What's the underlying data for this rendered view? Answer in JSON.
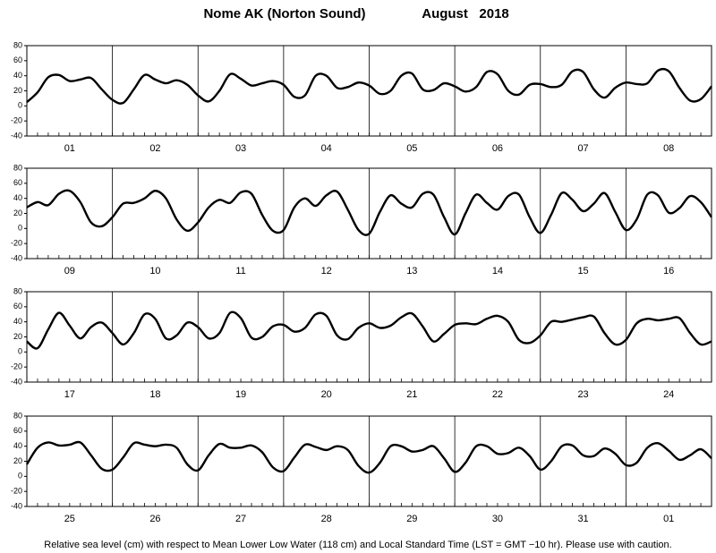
{
  "title": "Nome AK (Norton Sound)",
  "period": "August   2018",
  "note": "Relative sea level (cm) with respect to Mean Lower Low Water (118 cm) and Local Standard Time (LST = GMT −10 hr). Please use with caution.",
  "chart_data": [
    {
      "type": "line",
      "color": "#000000",
      "categories": [
        "01",
        "02",
        "03",
        "04",
        "05",
        "06",
        "07",
        "08"
      ],
      "x": [
        0,
        3,
        6,
        9,
        12,
        15,
        18,
        21,
        24,
        27,
        30,
        33,
        36,
        39,
        42,
        45,
        48,
        51,
        54,
        57,
        60,
        63,
        66,
        69,
        72,
        75,
        78,
        81,
        84,
        87,
        90,
        93,
        96,
        99,
        102,
        105,
        108,
        111,
        114,
        117,
        120,
        123,
        126,
        129,
        132,
        135,
        138,
        141,
        144,
        147,
        150,
        153,
        156,
        159,
        162,
        165,
        168,
        171,
        174,
        177,
        180,
        183,
        186,
        189,
        192
      ],
      "values": [
        5,
        18,
        38,
        41,
        33,
        35,
        37,
        22,
        8,
        4,
        22,
        41,
        35,
        30,
        34,
        28,
        14,
        6,
        20,
        42,
        36,
        27,
        30,
        33,
        28,
        12,
        14,
        40,
        40,
        24,
        25,
        31,
        27,
        16,
        20,
        40,
        43,
        22,
        21,
        30,
        26,
        19,
        25,
        45,
        42,
        20,
        15,
        28,
        29,
        25,
        28,
        46,
        45,
        22,
        11,
        24,
        31,
        29,
        30,
        47,
        46,
        24,
        7,
        9,
        26
      ],
      "xlim": [
        0,
        192
      ],
      "xticks": [
        0,
        24,
        48,
        72,
        96,
        120,
        144,
        168,
        192
      ],
      "ylim": [
        -40,
        80
      ],
      "yticks": [
        -40,
        -20,
        0,
        20,
        40,
        60,
        80
      ]
    },
    {
      "type": "line",
      "color": "#000000",
      "categories": [
        "09",
        "10",
        "11",
        "12",
        "13",
        "14",
        "15",
        "16"
      ],
      "x": [
        0,
        3,
        6,
        9,
        12,
        15,
        18,
        21,
        24,
        27,
        30,
        33,
        36,
        39,
        42,
        45,
        48,
        51,
        54,
        57,
        60,
        63,
        66,
        69,
        72,
        75,
        78,
        81,
        84,
        87,
        90,
        93,
        96,
        99,
        102,
        105,
        108,
        111,
        114,
        117,
        120,
        123,
        126,
        129,
        132,
        135,
        138,
        141,
        144,
        147,
        150,
        153,
        156,
        159,
        162,
        165,
        168,
        171,
        174,
        177,
        180,
        183,
        186,
        189,
        192
      ],
      "values": [
        28,
        35,
        31,
        46,
        50,
        35,
        8,
        3,
        15,
        33,
        34,
        40,
        50,
        40,
        12,
        -3,
        8,
        28,
        38,
        34,
        48,
        46,
        18,
        -3,
        -2,
        28,
        40,
        30,
        44,
        49,
        25,
        -2,
        -7,
        22,
        44,
        33,
        28,
        46,
        45,
        15,
        -8,
        20,
        45,
        34,
        25,
        43,
        45,
        15,
        -6,
        18,
        47,
        38,
        23,
        33,
        47,
        22,
        -2,
        12,
        45,
        44,
        21,
        27,
        43,
        35,
        15
      ],
      "xlim": [
        0,
        192
      ],
      "xticks": [
        0,
        24,
        48,
        72,
        96,
        120,
        144,
        168,
        192
      ],
      "ylim": [
        -40,
        80
      ],
      "yticks": [
        -40,
        -20,
        0,
        20,
        40,
        60,
        80
      ]
    },
    {
      "type": "line",
      "color": "#000000",
      "categories": [
        "17",
        "18",
        "19",
        "20",
        "21",
        "22",
        "23",
        "24"
      ],
      "x": [
        0,
        3,
        6,
        9,
        12,
        15,
        18,
        21,
        24,
        27,
        30,
        33,
        36,
        39,
        42,
        45,
        48,
        51,
        54,
        57,
        60,
        63,
        66,
        69,
        72,
        75,
        78,
        81,
        84,
        87,
        90,
        93,
        96,
        99,
        102,
        105,
        108,
        111,
        114,
        117,
        120,
        123,
        126,
        129,
        132,
        135,
        138,
        141,
        144,
        147,
        150,
        153,
        156,
        159,
        162,
        165,
        168,
        171,
        174,
        177,
        180,
        183,
        186,
        189,
        192
      ],
      "values": [
        14,
        5,
        30,
        52,
        35,
        18,
        33,
        39,
        25,
        10,
        25,
        50,
        44,
        18,
        22,
        39,
        33,
        18,
        25,
        52,
        45,
        19,
        20,
        34,
        36,
        27,
        32,
        50,
        48,
        22,
        17,
        32,
        38,
        32,
        35,
        46,
        51,
        34,
        14,
        24,
        36,
        38,
        37,
        44,
        48,
        40,
        16,
        12,
        22,
        40,
        40,
        43,
        46,
        47,
        25,
        10,
        16,
        38,
        44,
        42,
        44,
        45,
        25,
        10,
        14
      ],
      "xlim": [
        0,
        192
      ],
      "xticks": [
        0,
        24,
        48,
        72,
        96,
        120,
        144,
        168,
        192
      ],
      "ylim": [
        -40,
        80
      ],
      "yticks": [
        -40,
        -20,
        0,
        20,
        40,
        60,
        80
      ]
    },
    {
      "type": "line",
      "color": "#000000",
      "categories": [
        "25",
        "26",
        "27",
        "28",
        "29",
        "30",
        "31",
        "01"
      ],
      "x": [
        0,
        3,
        6,
        9,
        12,
        15,
        18,
        21,
        24,
        27,
        30,
        33,
        36,
        39,
        42,
        45,
        48,
        51,
        54,
        57,
        60,
        63,
        66,
        69,
        72,
        75,
        78,
        81,
        84,
        87,
        90,
        93,
        96,
        99,
        102,
        105,
        108,
        111,
        114,
        117,
        120,
        123,
        126,
        129,
        132,
        135,
        138,
        141,
        144,
        147,
        150,
        153,
        156,
        159,
        162,
        165,
        168,
        171,
        174,
        177,
        180,
        183,
        186,
        189,
        192
      ],
      "values": [
        16,
        38,
        45,
        41,
        42,
        45,
        28,
        10,
        9,
        25,
        44,
        42,
        40,
        42,
        38,
        16,
        8,
        28,
        43,
        38,
        38,
        41,
        32,
        12,
        7,
        25,
        42,
        39,
        35,
        40,
        35,
        14,
        5,
        18,
        40,
        40,
        33,
        35,
        40,
        24,
        6,
        18,
        40,
        40,
        30,
        31,
        38,
        27,
        9,
        20,
        40,
        41,
        28,
        27,
        37,
        30,
        15,
        18,
        38,
        44,
        34,
        22,
        28,
        36,
        24
      ],
      "xlim": [
        0,
        192
      ],
      "xticks": [
        0,
        24,
        48,
        72,
        96,
        120,
        144,
        168,
        192
      ],
      "ylim": [
        -40,
        80
      ],
      "yticks": [
        -40,
        -20,
        0,
        20,
        40,
        60,
        80
      ]
    }
  ]
}
